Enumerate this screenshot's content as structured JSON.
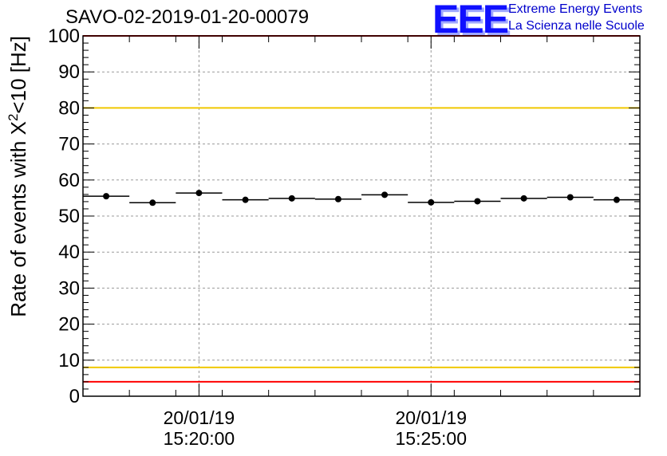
{
  "header": {
    "title": "SAVO-02-2019-01-20-00079",
    "logo_text": "EEE",
    "logo_line1": "Extreme Energy Events",
    "logo_line2": "La Scienza nelle Scuole"
  },
  "colors": {
    "red_limit": "#ff0000",
    "yellow_limit": "#f0c800",
    "grid": "#999999",
    "marker": "#000000",
    "logo": "#1010ff"
  },
  "chart_data": {
    "type": "scatter",
    "title": "SAVO-02-2019-01-20-00079",
    "ylabel": "Rate of events with X",
    "ylabel_sup": "2",
    "ylabel_tail": "<10 [Hz]",
    "xlabel": "",
    "ylim": [
      0,
      100
    ],
    "y_ticks": [
      0,
      10,
      20,
      30,
      40,
      50,
      60,
      70,
      80,
      90,
      100
    ],
    "xlim_minutes": [
      0,
      12
    ],
    "x_ticks": [
      {
        "minute": 2.5,
        "line1": "20/01/19",
        "line2": "15:20:00"
      },
      {
        "minute": 7.5,
        "line1": "20/01/19",
        "line2": "15:25:00"
      }
    ],
    "bin_width_minutes": 1,
    "x": [
      0.5,
      1.5,
      2.5,
      3.5,
      4.5,
      5.5,
      6.5,
      7.5,
      8.5,
      9.5,
      10.5,
      11.5
    ],
    "values": [
      55.5,
      53.7,
      56.4,
      54.5,
      54.9,
      54.7,
      55.9,
      53.8,
      54.1,
      54.9,
      55.2,
      54.5
    ],
    "errors": [
      0.8,
      0.8,
      0.8,
      0.8,
      0.8,
      0.8,
      0.8,
      0.8,
      0.8,
      0.8,
      0.8,
      0.8
    ],
    "reference_lines": [
      {
        "name": "upper-red-limit",
        "y": 100,
        "color": "#ff0000"
      },
      {
        "name": "upper-yellow-limit",
        "y": 80,
        "color": "#f0c800"
      },
      {
        "name": "lower-yellow-limit",
        "y": 8,
        "color": "#f0c800"
      },
      {
        "name": "lower-red-limit",
        "y": 4,
        "color": "#ff0000"
      }
    ],
    "grid": true
  }
}
